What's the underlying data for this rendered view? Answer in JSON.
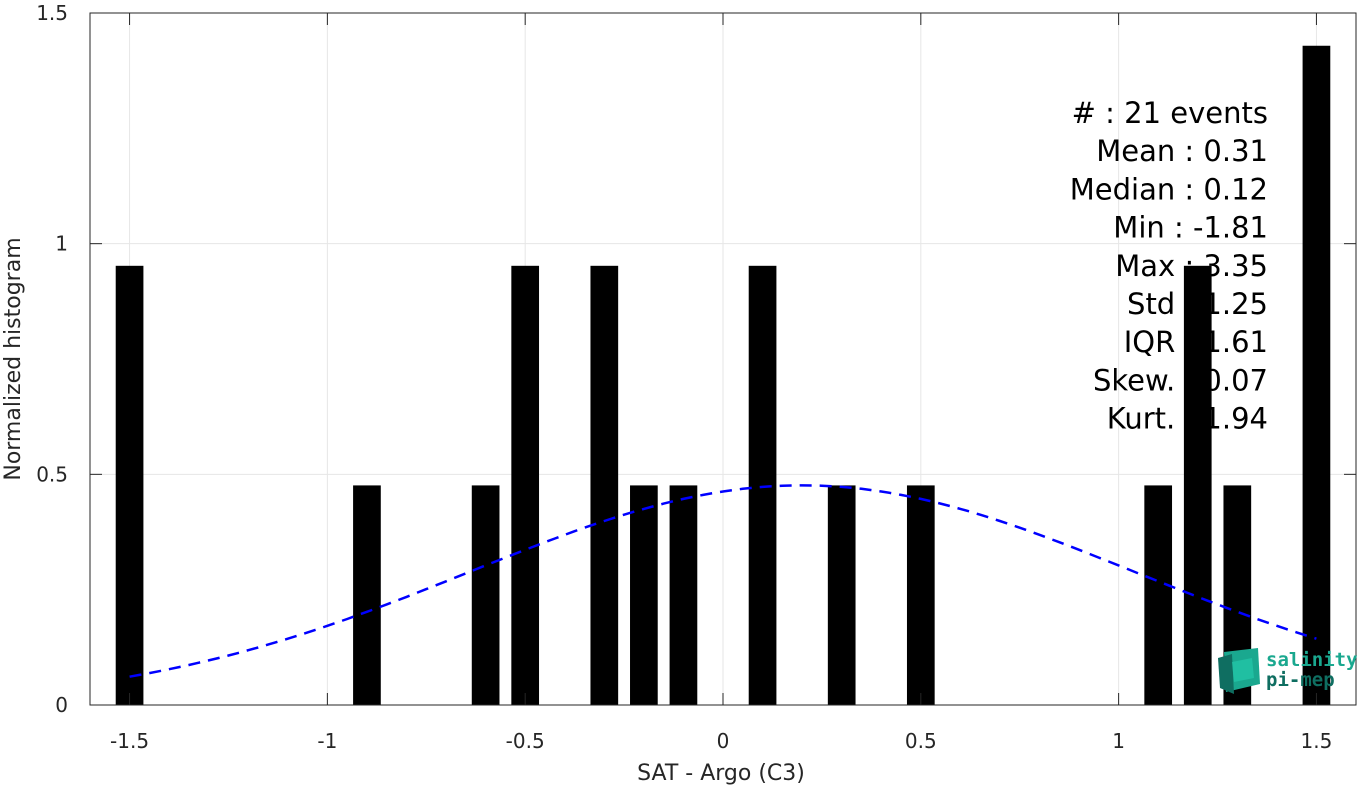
{
  "chart_data": {
    "type": "bar",
    "title": "",
    "xlabel": "SAT - Argo (C3)",
    "ylabel": "Normalized histogram",
    "xlim": [
      -1.6,
      1.6
    ],
    "ylim": [
      0,
      1.5
    ],
    "xticks": [
      -1.5,
      -1,
      -0.5,
      0,
      0.5,
      1,
      1.5
    ],
    "xtick_labels": [
      "-1.5",
      "-1",
      "-0.5",
      "0",
      "0.5",
      "1",
      "1.5"
    ],
    "yticks": [
      0,
      0.5,
      1,
      1.5
    ],
    "ytick_labels": [
      "0",
      "0.5",
      "1",
      "1.5"
    ],
    "grid": true,
    "bar_color": "#000000",
    "bar_width": 0.07,
    "bars": [
      {
        "x": -1.5,
        "value": 0.952
      },
      {
        "x": -0.9,
        "value": 0.476
      },
      {
        "x": -0.6,
        "value": 0.476
      },
      {
        "x": -0.5,
        "value": 0.952
      },
      {
        "x": -0.3,
        "value": 0.952
      },
      {
        "x": -0.2,
        "value": 0.476
      },
      {
        "x": -0.1,
        "value": 0.476
      },
      {
        "x": 0.1,
        "value": 0.952
      },
      {
        "x": 0.3,
        "value": 0.476
      },
      {
        "x": 0.5,
        "value": 0.476
      },
      {
        "x": 1.1,
        "value": 0.476
      },
      {
        "x": 1.2,
        "value": 0.952
      },
      {
        "x": 1.3,
        "value": 0.476
      },
      {
        "x": 1.5,
        "value": 1.429
      }
    ],
    "fit_curve": {
      "style": "dashed",
      "color": "#0000ff",
      "mean": 0.2,
      "sigma": 0.84,
      "x_range": [
        -1.5,
        1.5
      ]
    }
  },
  "stats_box": {
    "lines": [
      "#   : 21 events",
      "Mean : 0.31",
      "Median : 0.12",
      "Min : -1.81",
      "Max : 3.35",
      "Std : 1.25",
      "IQR : 1.61",
      "Skew. : 0.07",
      "Kurt. : 1.94"
    ]
  },
  "logo": {
    "line1": "salinity",
    "line2": "pi-mep",
    "color_primary": "#1aa88f",
    "color_secondary": "#0f6e61"
  }
}
